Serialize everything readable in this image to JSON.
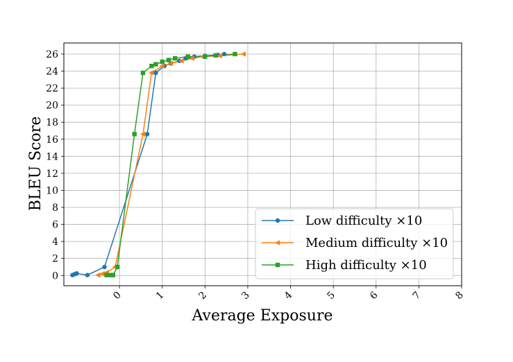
{
  "chart_data": {
    "type": "line",
    "title": "",
    "xlabel": "Average Exposure",
    "ylabel": "BLEU Score",
    "xlim": [
      -1.3,
      8
    ],
    "ylim": [
      -1.2,
      27.3
    ],
    "xticks": [
      0,
      1,
      2,
      3,
      4,
      5,
      6,
      7,
      8
    ],
    "xtick_labels": [
      "0",
      "1",
      "2",
      "3",
      "4",
      "5",
      "6",
      "7",
      "8"
    ],
    "yticks": [
      0,
      2,
      4,
      6,
      8,
      10,
      12,
      14,
      16,
      18,
      20,
      22,
      24,
      26
    ],
    "ytick_labels": [
      "0",
      "2",
      "4",
      "6",
      "8",
      "10",
      "12",
      "14",
      "16",
      "18",
      "20",
      "22",
      "24",
      "26"
    ],
    "grid": true,
    "legend_position": "lower-right",
    "series": [
      {
        "name": "Low difficulty ×10",
        "color": "#1f77b4",
        "marker": "circle",
        "x": [
          -1.1,
          -1.05,
          -1.0,
          -0.75,
          -0.35,
          0.65,
          0.85,
          1.05,
          1.2,
          1.4,
          1.55,
          1.75,
          2.0,
          2.3,
          2.45
        ],
        "y": [
          0.05,
          0.15,
          0.25,
          0.05,
          1.0,
          16.6,
          23.8,
          24.6,
          24.9,
          25.2,
          25.5,
          25.7,
          25.8,
          25.9,
          26.0
        ]
      },
      {
        "name": "Medium difficulty ×10",
        "color": "#ff7f0e",
        "marker": "triangle-left",
        "x": [
          -0.5,
          -0.4,
          -0.3,
          -0.1,
          0.55,
          0.75,
          1.0,
          1.2,
          1.45,
          1.7,
          1.95,
          2.35,
          2.9
        ],
        "y": [
          0.05,
          0.2,
          0.35,
          1.0,
          16.6,
          23.8,
          24.6,
          24.9,
          25.2,
          25.5,
          25.7,
          25.8,
          26.0
        ]
      },
      {
        "name": "High difficulty ×10",
        "color": "#2ca02c",
        "marker": "square",
        "x": [
          -0.3,
          -0.2,
          -0.15,
          -0.05,
          0.35,
          0.55,
          0.75,
          0.85,
          1.0,
          1.15,
          1.3,
          1.6,
          2.0,
          2.25,
          2.7
        ],
        "y": [
          0.05,
          0.05,
          0.05,
          1.0,
          16.6,
          23.8,
          24.6,
          24.8,
          25.1,
          25.3,
          25.5,
          25.7,
          25.7,
          25.85,
          26.0
        ]
      }
    ]
  }
}
